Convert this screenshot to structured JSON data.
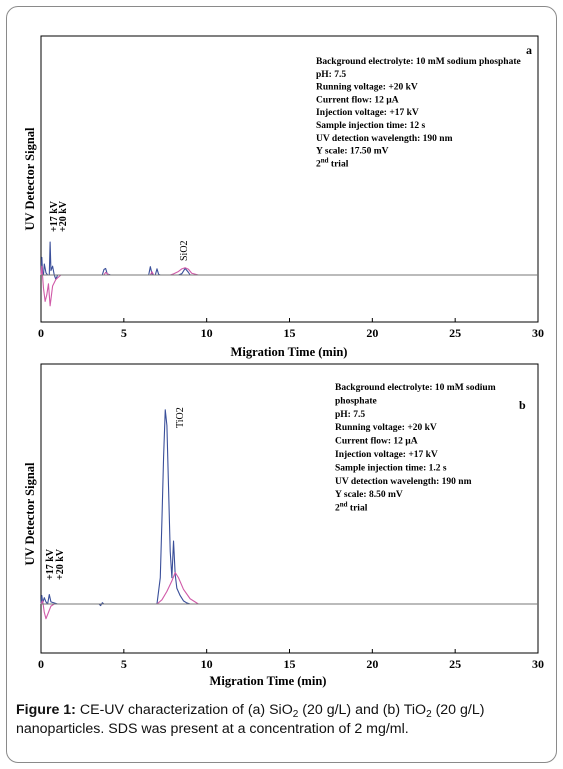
{
  "chart_data": [
    {
      "type": "line",
      "panel_label": "a",
      "xlabel": "Migration Time  (min)",
      "ylabel": "UV Detector Signal",
      "xlim": [
        0,
        30
      ],
      "x_ticks": [
        "0",
        "5",
        "10",
        "15",
        "20",
        "25",
        "30"
      ],
      "info": [
        "Background electrolyte: 10 mM sodium phosphate",
        "pH: 7.5",
        "Running voltage: +20 kV",
        "Current  flow: 12 µA",
        "Injection voltage: +17 kV",
        "Sample injection time: 12 s",
        "UV detection wavelength: 190 nm",
        "Y scale: 17.50 mV",
        "2nd trial"
      ],
      "annotations": [
        "+17 kV",
        "+20 kV",
        "SiO2"
      ],
      "series": [
        {
          "color": "#3a4f9a",
          "x": [
            0,
            0.05,
            0.1,
            0.15,
            0.2,
            0.3,
            0.4,
            0.5,
            0.55,
            0.6,
            0.7,
            0.8,
            0.9,
            1.0,
            1.5,
            2.0,
            3.0,
            3.7,
            3.8,
            3.9,
            4.0,
            4.2,
            5.0,
            6.0,
            6.5,
            6.6,
            6.7,
            6.8,
            6.9,
            7.0,
            7.1,
            7.2,
            7.4,
            8.0,
            8.3,
            8.5,
            8.7,
            8.9,
            9.0,
            9.2,
            10.0
          ],
          "y": [
            0,
            8,
            0,
            0,
            5,
            1,
            0,
            0,
            15,
            2,
            4,
            0,
            -2,
            0,
            0,
            0,
            0,
            0,
            2.5,
            3,
            0.5,
            0,
            0,
            0,
            0,
            3.8,
            0.5,
            0,
            0,
            2.8,
            0.3,
            0,
            0,
            0,
            0,
            0.6,
            3,
            1.2,
            0,
            0,
            0
          ]
        },
        {
          "color": "#d05aa8",
          "x": [
            0,
            0.05,
            0.15,
            0.25,
            0.35,
            0.45,
            0.55,
            0.7,
            0.9,
            1.2,
            1.5,
            3.8,
            3.9,
            4.1,
            6.6,
            6.7,
            6.8,
            7.8,
            8.0,
            8.3,
            8.5,
            8.7,
            8.9,
            9.1,
            9.5,
            10.0
          ],
          "y": [
            0,
            4,
            -6,
            -12,
            -9,
            -4,
            -14,
            -5,
            -2,
            0,
            0,
            0,
            1.2,
            0,
            0,
            1.5,
            0,
            0,
            0.5,
            1.6,
            2.8,
            3.3,
            2.6,
            0.8,
            0,
            0
          ]
        },
        {
          "color": "#777777",
          "x": [
            0,
            30
          ],
          "y": [
            0,
            0
          ]
        }
      ]
    },
    {
      "type": "line",
      "panel_label": "b",
      "xlabel": "Migration Time  (min)",
      "ylabel": "UV Detector Signal",
      "xlim": [
        0,
        30
      ],
      "x_ticks": [
        "0",
        "5",
        "10",
        "15",
        "20",
        "25",
        "30"
      ],
      "info": [
        "Background electrolyte: 10 mM sodium",
        "phosphate",
        "pH: 7.5",
        "Running voltage: +20 kV",
        "Current flow: 12 µA",
        "Injection voltage: +17 kV",
        "Sample injection time: 1.2 s",
        "UV detection wavelength: 190 nm",
        "Y scale: 8.50 mV",
        "2nd trial"
      ],
      "annotations": [
        "+17 kV",
        "+20 kV",
        "TiO2"
      ],
      "series": [
        {
          "color": "#3a4f9a",
          "x": [
            0,
            0.05,
            0.1,
            0.2,
            0.3,
            0.4,
            0.5,
            0.6,
            1.0,
            3.5,
            3.6,
            3.7,
            3.8,
            4.0,
            7.0,
            7.2,
            7.3,
            7.4,
            7.5,
            7.6,
            7.7,
            7.8,
            7.9,
            8.0,
            8.1,
            8.2,
            8.4,
            8.6,
            8.8,
            9.0,
            9.5,
            10.0
          ],
          "y": [
            0,
            8,
            1,
            6,
            2,
            0,
            9,
            2,
            0,
            0,
            -1.5,
            1.2,
            0,
            0,
            0,
            25,
            80,
            140,
            185,
            170,
            110,
            50,
            25,
            60,
            28,
            15,
            8,
            3,
            1,
            0,
            0,
            0
          ]
        },
        {
          "color": "#d05aa8",
          "x": [
            0,
            0.1,
            0.2,
            0.3,
            0.4,
            0.6,
            0.8,
            1.0,
            7.0,
            7.3,
            7.6,
            7.9,
            8.1,
            8.3,
            8.6,
            9.0,
            9.5,
            10.0,
            11.0
          ],
          "y": [
            0,
            3,
            -8,
            -14,
            -10,
            -2,
            0,
            0,
            0,
            4,
            12,
            22,
            30,
            25,
            14,
            5,
            0,
            0,
            0
          ]
        },
        {
          "color": "#777777",
          "x": [
            0,
            30
          ],
          "y": [
            0,
            0
          ]
        }
      ]
    }
  ],
  "caption": {
    "prefix": "Figure 1:",
    "text_1": " CE-UV characterization of (a) SiO",
    "sub_1": "2",
    "text_2": " (20 g/L) and (b) TiO",
    "sub_2": "2",
    "text_3": " (20 g/L) nanoparticles. SDS was present at a concentration of 2 mg/ml."
  }
}
